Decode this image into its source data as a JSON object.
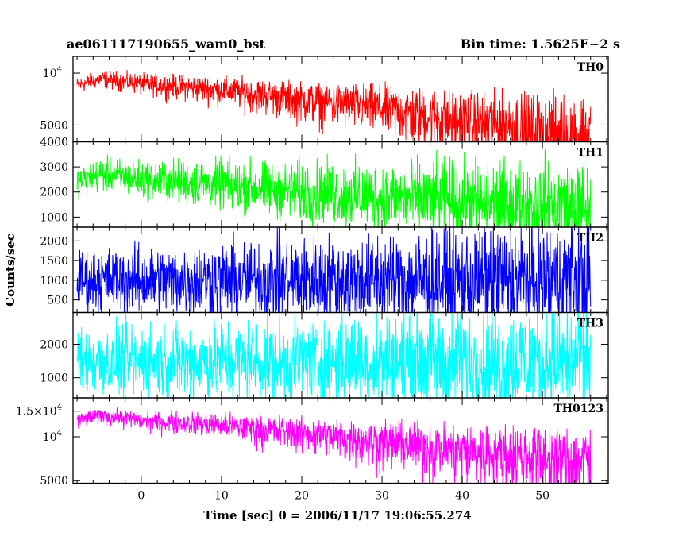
{
  "header": {
    "title": "ae061117190655_wam0_bst",
    "bin_time": "Bin time: 1.5625E−2 s"
  },
  "chart_data": {
    "type": "line",
    "xlabel": "Time [sec] 0 = 2006/11/17 19:06:55.274",
    "ylabel": "Counts/sec",
    "xlim": [
      -8.5,
      58.2
    ],
    "x_range": [
      -8,
      56
    ],
    "x_ticks": [
      0,
      10,
      20,
      30,
      40,
      50
    ],
    "panels": [
      {
        "name": "TH0",
        "color": "#ff0000",
        "ylim": [
          4000,
          12500
        ],
        "log": true,
        "y_ticks": [
          {
            "v": 10000,
            "m": "10",
            "e": "4"
          },
          {
            "v": 5000,
            "m": "5000",
            "e": ""
          }
        ],
        "trend": [
          [
            -8,
            8500
          ],
          [
            -5,
            9300
          ],
          [
            0,
            8700
          ],
          [
            10,
            8000
          ],
          [
            20,
            7000
          ],
          [
            30,
            6300
          ],
          [
            40,
            5300
          ],
          [
            50,
            4700
          ],
          [
            56,
            4400
          ]
        ],
        "noise": [
          800,
          2600
        ]
      },
      {
        "name": "TH1",
        "color": "#00ff00",
        "ylim": [
          600,
          4000
        ],
        "log": false,
        "y_ticks": [
          {
            "v": 1000,
            "m": "1000"
          },
          {
            "v": 2000,
            "m": "2000"
          },
          {
            "v": 3000,
            "m": "3000"
          },
          {
            "v": 4000,
            "m": "4000"
          }
        ],
        "trend": [
          [
            -8,
            2400
          ],
          [
            -5,
            2700
          ],
          [
            0,
            2500
          ],
          [
            10,
            2300
          ],
          [
            20,
            2000
          ],
          [
            30,
            1800
          ],
          [
            40,
            1600
          ],
          [
            50,
            1450
          ],
          [
            56,
            1350
          ]
        ],
        "noise": [
          500,
          1700
        ]
      },
      {
        "name": "TH2",
        "color": "#0000ff",
        "ylim": [
          180,
          2350
        ],
        "log": false,
        "y_ticks": [
          {
            "v": 500,
            "m": "500"
          },
          {
            "v": 1000,
            "m": "1000"
          },
          {
            "v": 1500,
            "m": "1500"
          },
          {
            "v": 2000,
            "m": "2000"
          }
        ],
        "trend": [
          [
            -8,
            1000
          ],
          [
            56,
            1000
          ]
        ],
        "noise": [
          650,
          1300
        ]
      },
      {
        "name": "TH3",
        "color": "#00ffff",
        "ylim": [
          400,
          2950
        ],
        "log": false,
        "y_ticks": [
          {
            "v": 1000,
            "m": "1000"
          },
          {
            "v": 2000,
            "m": "2000"
          }
        ],
        "trend": [
          [
            -8,
            1500
          ],
          [
            56,
            1500
          ]
        ],
        "noise": [
          850,
          1500
        ]
      },
      {
        "name": "TH0123",
        "color": "#ff00ff",
        "ylim": [
          4800,
          18500
        ],
        "log": true,
        "y_ticks": [
          {
            "v": 15000,
            "m": "1.5×10",
            "e": "4"
          },
          {
            "v": 10000,
            "m": "10",
            "e": "4"
          },
          {
            "v": 5000,
            "m": "5000",
            "e": ""
          }
        ],
        "trend": [
          [
            -8,
            13000
          ],
          [
            -5,
            14000
          ],
          [
            0,
            13000
          ],
          [
            10,
            12000
          ],
          [
            20,
            10600
          ],
          [
            30,
            9300
          ],
          [
            40,
            8200
          ],
          [
            50,
            7200
          ],
          [
            56,
            6700
          ]
        ],
        "noise": [
          1400,
          4000
        ]
      }
    ]
  }
}
